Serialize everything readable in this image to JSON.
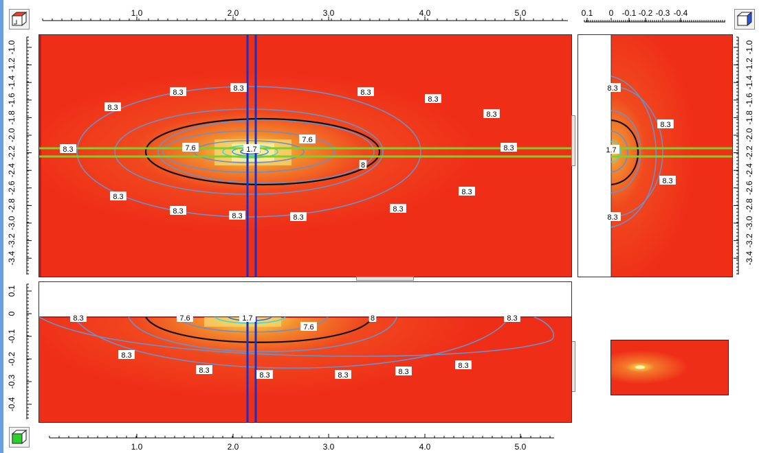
{
  "colors": {
    "field_red": "#f0301c",
    "contour_blue": "#6e8fc8",
    "contour_black": "#111111",
    "probe_blue": "#1a2fc8",
    "probe_green": "#7fd02a",
    "hot_yellow": "#f7e27a",
    "hot_cyan": "#3fd6d6"
  },
  "icons": {
    "top_left": "cube-red-face-icon",
    "top_right": "cube-blue-face-icon",
    "bottom_left": "cube-green-face-icon"
  },
  "top_ruler": {
    "labels": [
      "1.0",
      "2.0",
      "3.0",
      "4.0",
      "5.0"
    ]
  },
  "bottom_ruler": {
    "labels": [
      "1.0",
      "2.0",
      "3.0",
      "4.0",
      "5.0"
    ]
  },
  "side_top_ruler": {
    "labels": [
      "0.1",
      "0",
      "-0.1",
      "-0.2",
      "-0.3",
      "-0.4"
    ]
  },
  "left_ruler_top": {
    "labels": [
      "-1.0",
      "-1.2",
      "-1.4",
      "-1.6",
      "-1.8",
      "-2.0",
      "-2.2",
      "-2.4",
      "-2.6",
      "-2.8",
      "-3.0",
      "-3.2",
      "-3.4"
    ]
  },
  "right_ruler_top": {
    "labels": [
      "-1.0",
      "-1.2",
      "-1.4",
      "-1.6",
      "-1.8",
      "-2.0",
      "-2.2",
      "-2.4",
      "-2.6",
      "-2.8",
      "-3.0",
      "-3.2",
      "-3.4"
    ]
  },
  "left_ruler_bottom": {
    "labels": [
      "0.1",
      "0",
      "-0.1",
      "-0.2",
      "-0.3",
      "-0.4"
    ]
  },
  "contours": {
    "outer": "8.3",
    "mid": "8",
    "inner": "7.6",
    "center": "1.7"
  },
  "main_view_labels": [
    "8.3",
    "8.3",
    "8.3",
    "8.3",
    "8.3",
    "8.3",
    "8.3",
    "8.3",
    "7.6",
    "1.7",
    "7.6",
    "8",
    "8.3",
    "8.3",
    "8.3",
    "8.3",
    "8.3",
    "8.3",
    "8.3"
  ],
  "side_view_labels": [
    "8.3",
    "8.3",
    "1.7",
    "8.3",
    "8.3"
  ],
  "bottom_view_labels": [
    "8.3",
    "7.6",
    "1.7",
    "8",
    "8.3",
    "7.6",
    "8.3",
    "8.3",
    "8.3",
    "8.3",
    "8.3",
    "8.3"
  ]
}
